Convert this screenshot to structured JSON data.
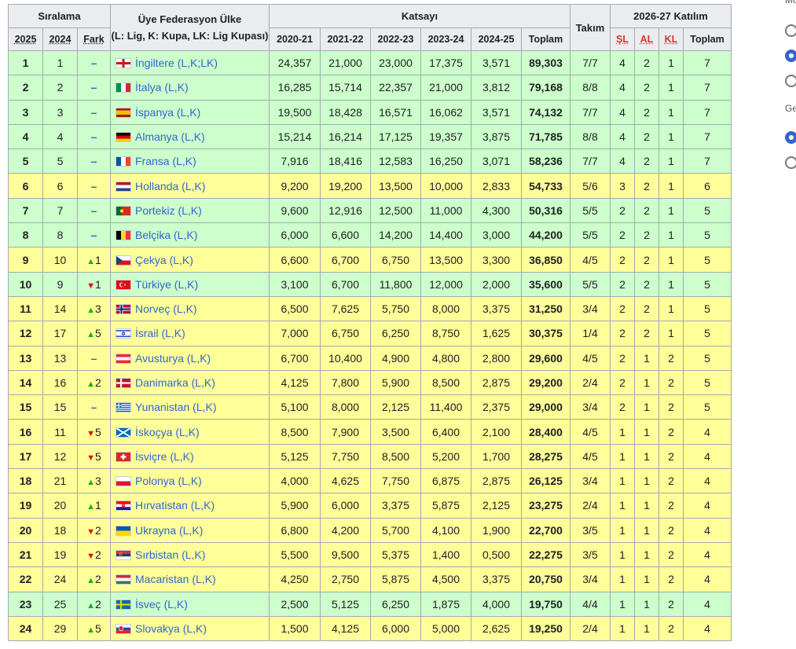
{
  "header": {
    "siralama": "Sıralama",
    "federation": "Üye Federasyon Ülke",
    "federation_note": "(L: Lig, K: Kupa, LK: Lig Kupası)",
    "katsayi": "Katsayı",
    "takim": "Takım",
    "katilim": "2026-27 Katılım",
    "sub_rank": [
      "2025",
      "2024",
      "Fark"
    ],
    "seasons": [
      "2020-21",
      "2021-22",
      "2022-23",
      "2023-24",
      "2024-25",
      "Toplam"
    ],
    "sub_part": [
      "ŞL",
      "AL",
      "KL",
      "Toplam"
    ]
  },
  "colors": {
    "green": "#ccffcc",
    "yellow": "#ffff99",
    "link": "#3366cc",
    "up": "#22aa22",
    "down": "#dd1111"
  },
  "rows": [
    {
      "r2025": "1",
      "r2024": "1",
      "dir": "same",
      "delta": "",
      "country": "İngiltere (L,K;LK)",
      "flag": "england",
      "c1": "24,357",
      "c2": "21,000",
      "c3": "23,000",
      "c4": "17,375",
      "c5": "3,571",
      "total": "89,303",
      "teams": "7/7",
      "sl": "4",
      "al": "2",
      "kl": "1",
      "ptotal": "7",
      "band": "green"
    },
    {
      "r2025": "2",
      "r2024": "2",
      "dir": "same",
      "delta": "",
      "country": "İtalya (L,K)",
      "flag": "italy",
      "c1": "16,285",
      "c2": "15,714",
      "c3": "22,357",
      "c4": "21,000",
      "c5": "3,812",
      "total": "79,168",
      "teams": "8/8",
      "sl": "4",
      "al": "2",
      "kl": "1",
      "ptotal": "7",
      "band": "green"
    },
    {
      "r2025": "3",
      "r2024": "3",
      "dir": "same",
      "delta": "",
      "country": "İspanya (L,K)",
      "flag": "spain",
      "c1": "19,500",
      "c2": "18,428",
      "c3": "16,571",
      "c4": "16,062",
      "c5": "3,571",
      "total": "74,132",
      "teams": "7/7",
      "sl": "4",
      "al": "2",
      "kl": "1",
      "ptotal": "7",
      "band": "green"
    },
    {
      "r2025": "4",
      "r2024": "4",
      "dir": "same",
      "delta": "",
      "country": "Almanya (L,K)",
      "flag": "germany",
      "c1": "15,214",
      "c2": "16,214",
      "c3": "17,125",
      "c4": "19,357",
      "c5": "3,875",
      "total": "71,785",
      "teams": "8/8",
      "sl": "4",
      "al": "2",
      "kl": "1",
      "ptotal": "7",
      "band": "green"
    },
    {
      "r2025": "5",
      "r2024": "5",
      "dir": "same",
      "delta": "",
      "country": "Fransa (L,K)",
      "flag": "france",
      "c1": "7,916",
      "c2": "18,416",
      "c3": "12,583",
      "c4": "16,250",
      "c5": "3,071",
      "total": "58,236",
      "teams": "7/7",
      "sl": "4",
      "al": "2",
      "kl": "1",
      "ptotal": "7",
      "band": "green"
    },
    {
      "r2025": "6",
      "r2024": "6",
      "dir": "same",
      "delta": "",
      "country": "Hollanda (L,K)",
      "flag": "netherlands",
      "c1": "9,200",
      "c2": "19,200",
      "c3": "13,500",
      "c4": "10,000",
      "c5": "2,833",
      "total": "54,733",
      "teams": "5/6",
      "sl": "3",
      "al": "2",
      "kl": "1",
      "ptotal": "6",
      "band": "yellow"
    },
    {
      "r2025": "7",
      "r2024": "7",
      "dir": "same",
      "delta": "",
      "country": "Portekiz (L,K)",
      "flag": "portugal",
      "c1": "9,600",
      "c2": "12,916",
      "c3": "12,500",
      "c4": "11,000",
      "c5": "4,300",
      "total": "50,316",
      "teams": "5/5",
      "sl": "2",
      "al": "2",
      "kl": "1",
      "ptotal": "5",
      "band": "green"
    },
    {
      "r2025": "8",
      "r2024": "8",
      "dir": "same",
      "delta": "",
      "country": "Belçika (L,K)",
      "flag": "belgium",
      "c1": "6,000",
      "c2": "6,600",
      "c3": "14,200",
      "c4": "14,400",
      "c5": "3,000",
      "total": "44,200",
      "teams": "5/5",
      "sl": "2",
      "al": "2",
      "kl": "1",
      "ptotal": "5",
      "band": "green"
    },
    {
      "r2025": "9",
      "r2024": "10",
      "dir": "up",
      "delta": "1",
      "country": "Çekya (L,K)",
      "flag": "czechia",
      "c1": "6,600",
      "c2": "6,700",
      "c3": "6,750",
      "c4": "13,500",
      "c5": "3,300",
      "total": "36,850",
      "teams": "4/5",
      "sl": "2",
      "al": "2",
      "kl": "1",
      "ptotal": "5",
      "band": "yellow"
    },
    {
      "r2025": "10",
      "r2024": "9",
      "dir": "down",
      "delta": "1",
      "country": "Türkiye (L,K)",
      "flag": "turkey",
      "c1": "3,100",
      "c2": "6,700",
      "c3": "11,800",
      "c4": "12,000",
      "c5": "2,000",
      "total": "35,600",
      "teams": "5/5",
      "sl": "2",
      "al": "2",
      "kl": "1",
      "ptotal": "5",
      "band": "green"
    },
    {
      "r2025": "11",
      "r2024": "14",
      "dir": "up",
      "delta": "3",
      "country": "Norveç (L,K)",
      "flag": "norway",
      "c1": "6,500",
      "c2": "7,625",
      "c3": "5,750",
      "c4": "8,000",
      "c5": "3,375",
      "total": "31,250",
      "teams": "3/4",
      "sl": "2",
      "al": "2",
      "kl": "1",
      "ptotal": "5",
      "band": "yellow"
    },
    {
      "r2025": "12",
      "r2024": "17",
      "dir": "up",
      "delta": "5",
      "country": "İsrail (L,K)",
      "flag": "israel",
      "c1": "7,000",
      "c2": "6,750",
      "c3": "6,250",
      "c4": "8,750",
      "c5": "1,625",
      "total": "30,375",
      "teams": "1/4",
      "sl": "2",
      "al": "2",
      "kl": "1",
      "ptotal": "5",
      "band": "yellow"
    },
    {
      "r2025": "13",
      "r2024": "13",
      "dir": "same",
      "delta": "",
      "country": "Avusturya (L,K)",
      "flag": "austria",
      "c1": "6,700",
      "c2": "10,400",
      "c3": "4,900",
      "c4": "4,800",
      "c5": "2,800",
      "total": "29,600",
      "teams": "4/5",
      "sl": "2",
      "al": "1",
      "kl": "2",
      "ptotal": "5",
      "band": "yellow"
    },
    {
      "r2025": "14",
      "r2024": "16",
      "dir": "up",
      "delta": "2",
      "country": "Danimarka (L,K)",
      "flag": "denmark",
      "c1": "4,125",
      "c2": "7,800",
      "c3": "5,900",
      "c4": "8,500",
      "c5": "2,875",
      "total": "29,200",
      "teams": "2/4",
      "sl": "2",
      "al": "1",
      "kl": "2",
      "ptotal": "5",
      "band": "yellow"
    },
    {
      "r2025": "15",
      "r2024": "15",
      "dir": "same",
      "delta": "",
      "country": "Yunanistan (L,K)",
      "flag": "greece",
      "c1": "5,100",
      "c2": "8,000",
      "c3": "2,125",
      "c4": "11,400",
      "c5": "2,375",
      "total": "29,000",
      "teams": "3/4",
      "sl": "2",
      "al": "1",
      "kl": "2",
      "ptotal": "5",
      "band": "yellow"
    },
    {
      "r2025": "16",
      "r2024": "11",
      "dir": "down",
      "delta": "5",
      "country": "İskoçya (L,K)",
      "flag": "scotland",
      "c1": "8,500",
      "c2": "7,900",
      "c3": "3,500",
      "c4": "6,400",
      "c5": "2,100",
      "total": "28,400",
      "teams": "4/5",
      "sl": "1",
      "al": "1",
      "kl": "2",
      "ptotal": "4",
      "band": "yellow"
    },
    {
      "r2025": "17",
      "r2024": "12",
      "dir": "down",
      "delta": "5",
      "country": "İsviçre (L,K)",
      "flag": "switzerland",
      "c1": "5,125",
      "c2": "7,750",
      "c3": "8,500",
      "c4": "5,200",
      "c5": "1,700",
      "total": "28,275",
      "teams": "4/5",
      "sl": "1",
      "al": "1",
      "kl": "2",
      "ptotal": "4",
      "band": "yellow"
    },
    {
      "r2025": "18",
      "r2024": "21",
      "dir": "up",
      "delta": "3",
      "country": "Polonya (L,K)",
      "flag": "poland",
      "c1": "4,000",
      "c2": "4,625",
      "c3": "7,750",
      "c4": "6,875",
      "c5": "2,875",
      "total": "26,125",
      "teams": "3/4",
      "sl": "1",
      "al": "1",
      "kl": "2",
      "ptotal": "4",
      "band": "yellow"
    },
    {
      "r2025": "19",
      "r2024": "20",
      "dir": "up",
      "delta": "1",
      "country": "Hırvatistan (L,K)",
      "flag": "croatia",
      "c1": "5,900",
      "c2": "6,000",
      "c3": "3,375",
      "c4": "5,875",
      "c5": "2,125",
      "total": "23,275",
      "teams": "2/4",
      "sl": "1",
      "al": "1",
      "kl": "2",
      "ptotal": "4",
      "band": "yellow"
    },
    {
      "r2025": "20",
      "r2024": "18",
      "dir": "down",
      "delta": "2",
      "country": "Ukrayna (L,K)",
      "flag": "ukraine",
      "c1": "6,800",
      "c2": "4,200",
      "c3": "5,700",
      "c4": "4,100",
      "c5": "1,900",
      "total": "22,700",
      "teams": "3/5",
      "sl": "1",
      "al": "1",
      "kl": "2",
      "ptotal": "4",
      "band": "yellow"
    },
    {
      "r2025": "21",
      "r2024": "19",
      "dir": "down",
      "delta": "2",
      "country": "Sırbistan (L,K)",
      "flag": "serbia",
      "c1": "5,500",
      "c2": "9,500",
      "c3": "5,375",
      "c4": "1,400",
      "c5": "0,500",
      "total": "22,275",
      "teams": "3/5",
      "sl": "1",
      "al": "1",
      "kl": "2",
      "ptotal": "4",
      "band": "yellow"
    },
    {
      "r2025": "22",
      "r2024": "24",
      "dir": "up",
      "delta": "2",
      "country": "Macaristan (L,K)",
      "flag": "hungary",
      "c1": "4,250",
      "c2": "2,750",
      "c3": "5,875",
      "c4": "4,500",
      "c5": "3,375",
      "total": "20,750",
      "teams": "3/4",
      "sl": "1",
      "al": "1",
      "kl": "2",
      "ptotal": "4",
      "band": "yellow"
    },
    {
      "r2025": "23",
      "r2024": "25",
      "dir": "up",
      "delta": "2",
      "country": "İsveç (L,K)",
      "flag": "sweden",
      "c1": "2,500",
      "c2": "5,125",
      "c3": "6,250",
      "c4": "1,875",
      "c5": "4,000",
      "total": "19,750",
      "teams": "4/4",
      "sl": "1",
      "al": "1",
      "kl": "2",
      "ptotal": "4",
      "band": "green"
    },
    {
      "r2025": "24",
      "r2024": "29",
      "dir": "up",
      "delta": "5",
      "country": "Slovakya (L,K)",
      "flag": "slovakia",
      "c1": "1,500",
      "c2": "4,125",
      "c3": "6,000",
      "c4": "5,000",
      "c5": "2,625",
      "total": "19,250",
      "teams": "2/4",
      "sl": "1",
      "al": "1",
      "kl": "2",
      "ptotal": "4",
      "band": "yellow"
    }
  ],
  "side_panel": {
    "label_top": "Mo",
    "label_mid": "Ge",
    "radios_group1": [
      "off",
      "on",
      "off"
    ],
    "radios_group2": [
      "on",
      "off"
    ]
  }
}
